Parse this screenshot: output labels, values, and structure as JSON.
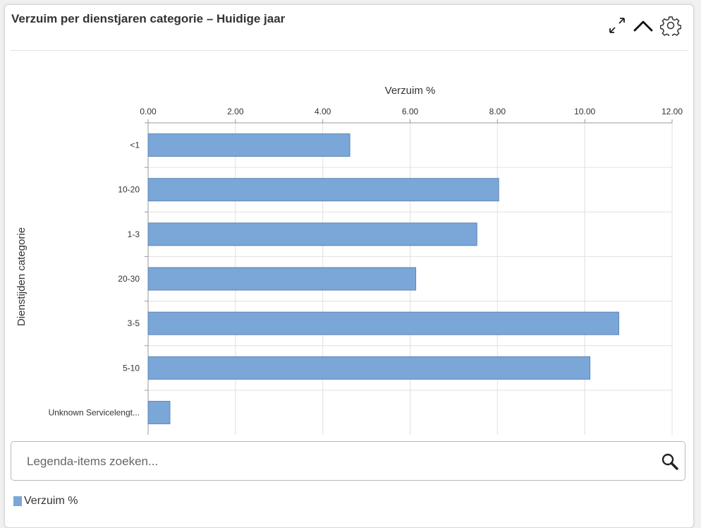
{
  "widget": {
    "title": "Verzuim per dienstjaren categorie – Huidige jaar"
  },
  "search": {
    "placeholder": "Legenda-items zoeken..."
  },
  "legend": {
    "items": [
      {
        "label": "Verzuim %",
        "color": "#7aa6d8"
      }
    ]
  },
  "chart_data": {
    "type": "bar",
    "orientation": "horizontal",
    "title": "",
    "xlabel": "Verzuim %",
    "ylabel": "Dienstijden categorie",
    "xlim": [
      0,
      12
    ],
    "x_ticks": [
      "0.00",
      "2.00",
      "4.00",
      "6.00",
      "8.00",
      "10.00",
      "12.00"
    ],
    "x_axis_position": "top",
    "grid": true,
    "categories": [
      "<1",
      "10-20",
      "1-3",
      "20-30",
      "3-5",
      "5-10",
      "Unknown Servicelengt..."
    ],
    "series": [
      {
        "name": "Verzuim %",
        "values": [
          4.62,
          8.03,
          7.53,
          6.13,
          10.78,
          10.12,
          0.5
        ],
        "color": "#7aa6d8"
      }
    ],
    "legend": "bottom-left"
  }
}
